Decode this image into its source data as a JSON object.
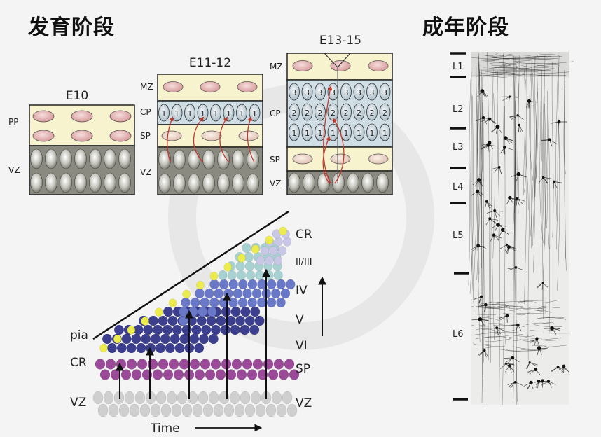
{
  "headings": {
    "developmental": "发育阶段",
    "adult": "成年阶段"
  },
  "panels": {
    "e10": {
      "title": "E10",
      "labels": [
        "PP",
        "VZ"
      ]
    },
    "e11": {
      "title": "E11-12",
      "labels": [
        "MZ",
        "CP",
        "SP",
        "VZ"
      ],
      "cp_cell": "1"
    },
    "e13": {
      "title": "E13-15",
      "labels": [
        "MZ",
        "CP",
        "SP",
        "VZ"
      ],
      "cp_rows": [
        "3",
        "2",
        "1"
      ]
    }
  },
  "migration": {
    "left_labels": {
      "pia": "pia",
      "cr": "CR",
      "vz": "VZ"
    },
    "right_labels": [
      "CR",
      "II/III",
      "IV",
      "V",
      "VI",
      "SP",
      "VZ"
    ],
    "time_label": "Time"
  },
  "cortex": {
    "layers": [
      "L1",
      "L2",
      "L3",
      "L4",
      "L5",
      "L6"
    ]
  },
  "colors": {
    "yellow_band": "#f8f3cf",
    "blue_band": "#cfdde4",
    "vz_band": "#8a8a80",
    "pink_cell": "#d99a9a",
    "arrow_red": "#c0392b",
    "cr_yellow": "#ecec4c",
    "sp_purple": "#9a4a98",
    "vi_navy": "#3c3e8e",
    "v_blue": "#6a78c8",
    "iv_teal": "#a8d2d2",
    "ii_iii_lavender": "#c8c8e6",
    "vz_gray": "#cfcfcf"
  }
}
